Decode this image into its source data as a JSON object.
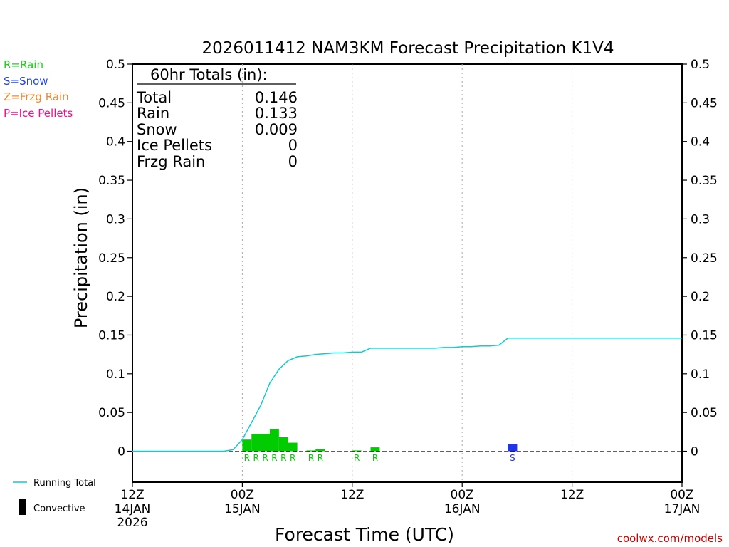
{
  "chart_data": {
    "type": "bar",
    "title": "2026011412 NAM3KM Forecast Precipitation K1V4",
    "xlabel": "Forecast Time (UTC)",
    "ylabel": "Precipitation (in)",
    "ylim": [
      -0.04,
      0.5
    ],
    "xlim_hours": [
      0,
      60
    ],
    "yticks": [
      {
        "value": 0,
        "label": "0"
      },
      {
        "value": 0.05,
        "label": "0.05"
      },
      {
        "value": 0.1,
        "label": "0.1"
      },
      {
        "value": 0.15,
        "label": "0.15"
      },
      {
        "value": 0.2,
        "label": "0.2"
      },
      {
        "value": 0.25,
        "label": "0.25"
      },
      {
        "value": 0.3,
        "label": "0.3"
      },
      {
        "value": 0.35,
        "label": "0.35"
      },
      {
        "value": 0.4,
        "label": "0.4"
      },
      {
        "value": 0.45,
        "label": "0.45"
      },
      {
        "value": 0.5,
        "label": "0.5"
      }
    ],
    "xticks": [
      {
        "hour": 0,
        "line1": "12Z",
        "line2": "14JAN",
        "line3": "2026"
      },
      {
        "hour": 12,
        "line1": "00Z",
        "line2": "15JAN",
        "line3": ""
      },
      {
        "hour": 24,
        "line1": "12Z",
        "line2": "",
        "line3": ""
      },
      {
        "hour": 36,
        "line1": "00Z",
        "line2": "16JAN",
        "line3": ""
      },
      {
        "hour": 48,
        "line1": "12Z",
        "line2": "",
        "line3": ""
      },
      {
        "hour": 60,
        "line1": "00Z",
        "line2": "17JAN",
        "line3": ""
      }
    ],
    "bars": [
      {
        "hour": 12,
        "value": 0.015,
        "type": "R"
      },
      {
        "hour": 13,
        "value": 0.022,
        "type": "R"
      },
      {
        "hour": 14,
        "value": 0.022,
        "type": "R"
      },
      {
        "hour": 15,
        "value": 0.029,
        "type": "R"
      },
      {
        "hour": 16,
        "value": 0.018,
        "type": "R"
      },
      {
        "hour": 17,
        "value": 0.011,
        "type": "R"
      },
      {
        "hour": 19,
        "value": 0.001,
        "type": "R"
      },
      {
        "hour": 20,
        "value": 0.003,
        "type": "R"
      },
      {
        "hour": 24,
        "value": 0.001,
        "type": "R"
      },
      {
        "hour": 26,
        "value": 0.005,
        "type": "R"
      },
      {
        "hour": 41,
        "value": 0.009,
        "type": "S"
      }
    ],
    "running_total": {
      "hours": [
        0,
        10,
        11,
        12,
        13,
        14,
        15,
        16,
        17,
        18,
        19,
        20,
        21,
        22,
        23,
        24,
        25,
        26,
        27,
        30,
        33,
        34,
        35,
        36,
        37,
        38,
        39,
        40,
        41,
        45,
        50,
        55,
        60
      ],
      "values": [
        0,
        0,
        0.002,
        0.015,
        0.037,
        0.059,
        0.088,
        0.106,
        0.117,
        0.122,
        0.123,
        0.125,
        0.126,
        0.127,
        0.127,
        0.128,
        0.128,
        0.133,
        0.133,
        0.133,
        0.133,
        0.134,
        0.134,
        0.135,
        0.135,
        0.136,
        0.136,
        0.137,
        0.146,
        0.146,
        0.146,
        0.146,
        0.146
      ]
    },
    "series_colors": {
      "R": "#00cc00",
      "S": "#2233ee",
      "Z": "#ee8833",
      "P": "#ee1188",
      "running_total": "#11cccc"
    }
  },
  "ptype_legend": [
    {
      "label": "R=Rain",
      "color": "#22cc22"
    },
    {
      "label": "S=Snow",
      "color": "#2244ee"
    },
    {
      "label": "Z=Frzg Rain",
      "color": "#ee8833"
    },
    {
      "label": "P=Ice Pellets",
      "color": "#ee1188"
    }
  ],
  "totals": {
    "header": "60hr Totals (in):",
    "rows": [
      {
        "label": "Total",
        "value": "0.146"
      },
      {
        "label": "Rain",
        "value": "0.133"
      },
      {
        "label": "Snow",
        "value": "0.009"
      },
      {
        "label": "Ice Pellets",
        "value": "0"
      },
      {
        "label": "Frzg Rain",
        "value": "0"
      }
    ]
  },
  "bottom_legend": {
    "running_total_label": "Running Total",
    "convective_label": "Convective"
  },
  "credit": "coolwx.com/models"
}
